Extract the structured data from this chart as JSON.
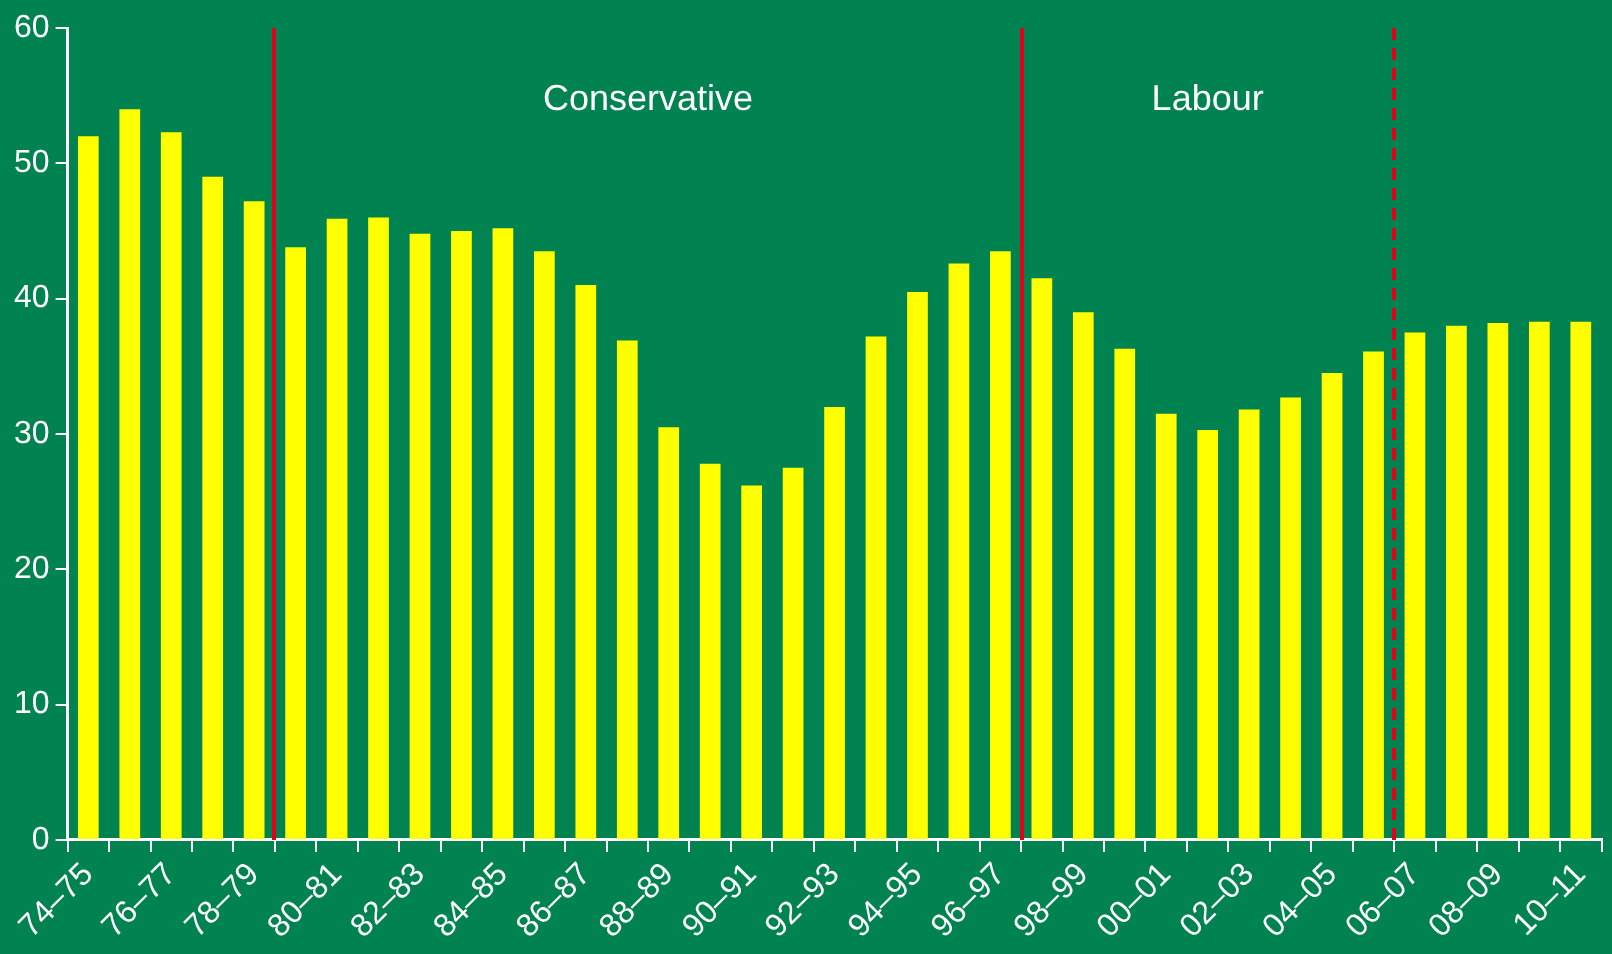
{
  "chart_data": {
    "type": "bar",
    "categories": [
      "74–75",
      null,
      "76–77",
      null,
      "78–79",
      null,
      "80–81",
      null,
      "82–83",
      null,
      "84–85",
      null,
      "86–87",
      null,
      "88–89",
      null,
      "90–91",
      null,
      "92–93",
      null,
      "94–95",
      null,
      "96–97",
      null,
      "98–99",
      null,
      "00–01",
      null,
      "02–03",
      null,
      "04–05",
      null,
      "06–07",
      null,
      "08–09",
      null,
      "10–11"
    ],
    "values": [
      52,
      54,
      52.3,
      49,
      47.2,
      43.8,
      45.9,
      46,
      44.8,
      45,
      45.2,
      43.5,
      41,
      36.9,
      30.5,
      27.8,
      26.2,
      27.5,
      32,
      37.2,
      40.5,
      42.6,
      43.5,
      41.5,
      39,
      36.3,
      31.5,
      30.3,
      31.8,
      32.7,
      34.5,
      36.1,
      37.5,
      38,
      38.2,
      38.3,
      38.3
    ],
    "color": "#ffff00",
    "ylim": [
      0,
      60
    ],
    "yticks": [
      0,
      10,
      20,
      30,
      40,
      50,
      60
    ],
    "grid": false,
    "legend": false,
    "annotations": [
      "Conservative",
      "Labour"
    ]
  }
}
